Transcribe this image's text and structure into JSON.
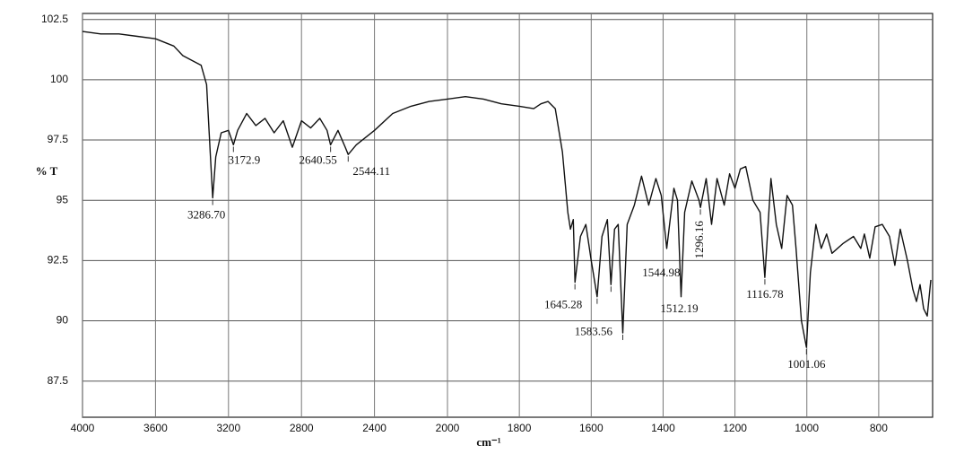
{
  "chart_data": {
    "type": "line",
    "x_label": "cm⁻¹",
    "y_label": "% T",
    "color": "#111111",
    "grid": true,
    "xlim": [
      4000,
      650
    ],
    "x_scale_break": 2000,
    "xticks": [
      4000,
      3600,
      3200,
      2800,
      2400,
      2000,
      1800,
      1600,
      1400,
      1200,
      1000,
      800
    ],
    "ylim": [
      86,
      102.75
    ],
    "yticks": [
      102.5,
      100,
      97.5,
      95,
      92.5,
      90,
      87.5
    ],
    "x": [
      4000,
      3900,
      3800,
      3700,
      3600,
      3500,
      3450,
      3400,
      3350,
      3320,
      3300,
      3286.7,
      3270,
      3240,
      3200,
      3172.9,
      3150,
      3100,
      3050,
      3000,
      2950,
      2900,
      2850,
      2800,
      2750,
      2700,
      2660,
      2640.55,
      2600,
      2560,
      2544.11,
      2500,
      2400,
      2300,
      2200,
      2100,
      2000,
      1950,
      1900,
      1850,
      1800,
      1760,
      1740,
      1720,
      1700,
      1680,
      1665,
      1658,
      1650,
      1645.28,
      1630,
      1615,
      1600,
      1583.56,
      1570,
      1555,
      1544.98,
      1535,
      1525,
      1512.19,
      1500,
      1480,
      1460,
      1440,
      1420,
      1405,
      1390,
      1370,
      1360,
      1350,
      1340,
      1320,
      1300,
      1296.16,
      1280,
      1265,
      1250,
      1230,
      1215,
      1200,
      1185,
      1170,
      1150,
      1130,
      1116.78,
      1100,
      1085,
      1070,
      1055,
      1040,
      1030,
      1015,
      1001.06,
      990,
      975,
      960,
      945,
      930,
      900,
      870,
      850,
      840,
      825,
      810,
      790,
      770,
      755,
      740,
      720,
      705,
      695,
      685,
      675,
      665,
      655
    ],
    "values": [
      102.0,
      101.9,
      101.9,
      101.8,
      101.7,
      101.4,
      101.0,
      100.8,
      100.6,
      99.8,
      97.0,
      95.1,
      96.8,
      97.8,
      97.9,
      97.3,
      97.9,
      98.6,
      98.1,
      98.4,
      97.8,
      98.3,
      97.2,
      98.3,
      98.0,
      98.4,
      97.9,
      97.3,
      97.9,
      97.2,
      96.9,
      97.3,
      97.9,
      98.6,
      98.9,
      99.1,
      99.2,
      99.3,
      99.2,
      99.0,
      98.9,
      98.8,
      99.0,
      99.1,
      98.8,
      97.0,
      94.5,
      93.8,
      94.2,
      91.6,
      93.5,
      94.0,
      92.5,
      91.0,
      93.5,
      94.2,
      91.5,
      93.8,
      94.0,
      89.5,
      94.0,
      94.8,
      96.0,
      94.8,
      95.9,
      95.2,
      93.0,
      95.5,
      95.0,
      91.0,
      94.5,
      95.8,
      95.0,
      94.7,
      95.9,
      94.0,
      95.9,
      94.8,
      96.1,
      95.5,
      96.3,
      96.4,
      95.0,
      94.5,
      91.8,
      95.9,
      94.0,
      93.0,
      95.2,
      94.8,
      93.0,
      90.0,
      88.9,
      92.0,
      94.0,
      93.0,
      93.6,
      92.8,
      93.2,
      93.5,
      93.0,
      93.6,
      92.6,
      93.9,
      94.0,
      93.5,
      92.3,
      93.8,
      92.5,
      91.3,
      90.8,
      91.5,
      90.5,
      90.2,
      91.7
    ],
    "annotations": [
      {
        "x": 3286.7,
        "label": "3286.70"
      },
      {
        "x": 3172.9,
        "label": "3172.9"
      },
      {
        "x": 2640.55,
        "label": "2640.55"
      },
      {
        "x": 2544.11,
        "label": "2544.11"
      },
      {
        "x": 1645.28,
        "label": "1645.28"
      },
      {
        "x": 1583.56,
        "label": "1583.56"
      },
      {
        "x": 1544.98,
        "label": "1544.98"
      },
      {
        "x": 1512.19,
        "label": "1512.19"
      },
      {
        "x": 1296.16,
        "label": "1296.16"
      },
      {
        "x": 1116.78,
        "label": "1116.78"
      },
      {
        "x": 1001.06,
        "label": "1001.06"
      }
    ]
  }
}
